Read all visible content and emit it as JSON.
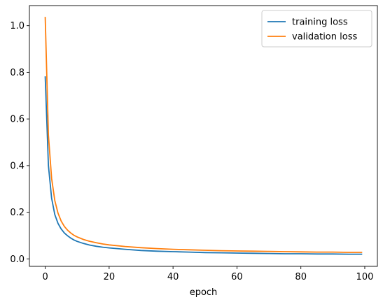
{
  "chart_data": {
    "type": "line",
    "xlabel": "epoch",
    "ylabel": "",
    "xlim": [
      -4.95,
      103.95
    ],
    "ylim": [
      -0.032,
      1.086
    ],
    "xticks": [
      0,
      20,
      40,
      60,
      80,
      100
    ],
    "yticks": [
      0.0,
      0.2,
      0.4,
      0.6,
      0.8,
      1.0
    ],
    "xtick_labels": [
      "0",
      "20",
      "40",
      "60",
      "80",
      "100"
    ],
    "ytick_labels": [
      "0.0",
      "0.2",
      "0.4",
      "0.6",
      "0.8",
      "1.0"
    ],
    "grid": false,
    "legend_position": "top-right",
    "x": [
      0,
      1,
      2,
      3,
      4,
      5,
      6,
      7,
      8,
      9,
      10,
      12,
      14,
      16,
      18,
      20,
      25,
      30,
      35,
      40,
      45,
      50,
      55,
      60,
      65,
      70,
      75,
      80,
      85,
      90,
      95,
      99
    ],
    "series": [
      {
        "name": "training loss",
        "color": "#1f77b4",
        "values": [
          0.78,
          0.4,
          0.26,
          0.19,
          0.152,
          0.128,
          0.111,
          0.099,
          0.089,
          0.081,
          0.075,
          0.066,
          0.059,
          0.054,
          0.05,
          0.047,
          0.041,
          0.036,
          0.033,
          0.031,
          0.029,
          0.027,
          0.026,
          0.025,
          0.024,
          0.023,
          0.022,
          0.022,
          0.021,
          0.021,
          0.02,
          0.02
        ]
      },
      {
        "name": "validation loss",
        "color": "#ff7f0e",
        "values": [
          1.035,
          0.53,
          0.345,
          0.25,
          0.196,
          0.162,
          0.139,
          0.123,
          0.111,
          0.101,
          0.094,
          0.083,
          0.075,
          0.069,
          0.064,
          0.06,
          0.053,
          0.048,
          0.044,
          0.041,
          0.039,
          0.037,
          0.035,
          0.034,
          0.033,
          0.032,
          0.031,
          0.03,
          0.029,
          0.029,
          0.028,
          0.028
        ]
      }
    ]
  }
}
